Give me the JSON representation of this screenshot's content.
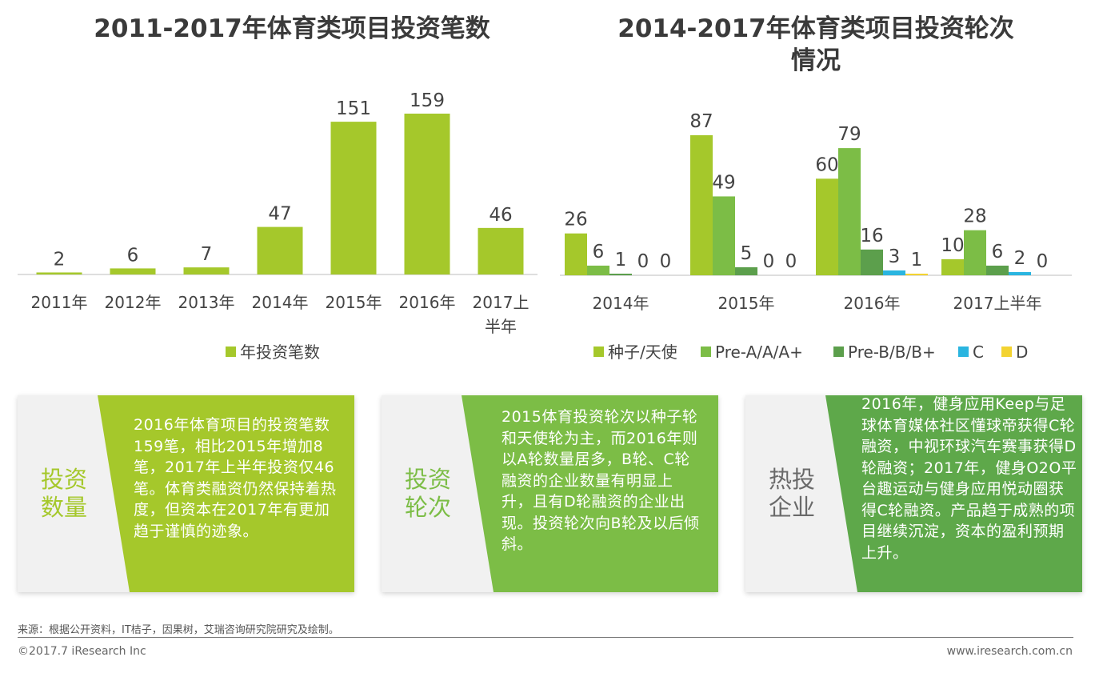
{
  "chart_data": [
    {
      "type": "bar",
      "title": "2011-2017年体育类项目投资笔数",
      "categories": [
        "2011年",
        "2012年",
        "2013年",
        "2014年",
        "2015年",
        "2016年",
        "2017上半年"
      ],
      "series": [
        {
          "name": "年投资笔数",
          "values": [
            2,
            6,
            7,
            47,
            151,
            159,
            46
          ],
          "color": "#a5c82b"
        }
      ],
      "xlabel": "",
      "ylabel": "",
      "ylim": [
        0,
        170
      ],
      "legend": "bottom-center"
    },
    {
      "type": "bar",
      "title": "2014-2017年体育类项目投资轮次情况",
      "categories": [
        "2014年",
        "2015年",
        "2016年",
        "2017上半年"
      ],
      "series": [
        {
          "name": "种子/天使",
          "values": [
            26,
            87,
            60,
            10
          ],
          "color": "#a5c82b"
        },
        {
          "name": "Pre-A/A/A+",
          "values": [
            6,
            49,
            79,
            28
          ],
          "color": "#7cbd46"
        },
        {
          "name": "Pre-B/B/B+",
          "values": [
            1,
            5,
            16,
            6
          ],
          "color": "#5c9f4c"
        },
        {
          "name": "C",
          "values": [
            0,
            0,
            3,
            2
          ],
          "color": "#2ab5e0"
        },
        {
          "name": "D",
          "values": [
            0,
            0,
            1,
            0
          ],
          "color": "#f3d331"
        }
      ],
      "xlabel": "",
      "ylabel": "",
      "ylim": [
        0,
        100
      ],
      "legend": "bottom-center"
    }
  ],
  "titles": {
    "left": "2011-2017年体育类项目投资笔数",
    "right_line1": "2014-2017年体育类项目投资轮次",
    "right_line2": "情况"
  },
  "cards": [
    {
      "label_line1": "投资",
      "label_line2": "数量",
      "label_color": "#a5c82b",
      "bg": "#a5c82b",
      "text": "2016年体育项目的投资笔数159笔，相比2015年增加8笔，2017年上半年投资仅46笔。体育类融资仍然保持着热度，但资本在2017年有更加趋于谨慎的迹象。"
    },
    {
      "label_line1": "投资",
      "label_line2": "轮次",
      "label_color": "#7cbd46",
      "bg": "#7cbd46",
      "text": "2015体育投资轮次以种子轮和天使轮为主，而2016年则以A轮数量居多，B轮、C轮融资的企业数量有明显上升，且有D轮融资的企业出现。投资轮次向B轮及以后倾斜。"
    },
    {
      "label_line1": "热投",
      "label_line2": "企业",
      "label_color": "#6a6a6a",
      "bg": "#5ea84a",
      "text": "2016年，健身应用Keep与足球体育媒体社区懂球帝获得C轮融资，中视环球汽车赛事获得D轮融资；2017年，健身O2O平台趣运动与健身应用悦动圈获得C轮融资。产品趋于成熟的项目继续沉淀，资本的盈利预期上升。"
    }
  ],
  "footer": {
    "source": "来源：根据公开资料，IT桔子，因果树，艾瑞咨询研究院研究及绘制。",
    "copyright": "©2017.7 iResearch Inc",
    "url": "www.iresearch.com.cn"
  }
}
